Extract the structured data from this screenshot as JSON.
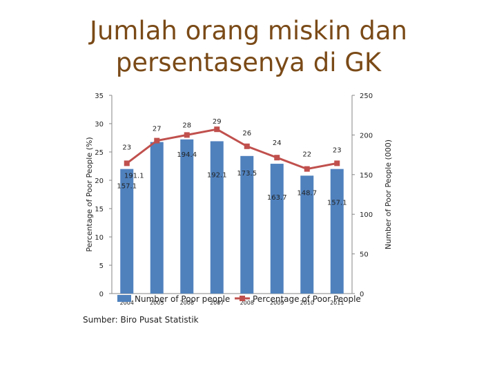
{
  "title": "Jumlah orang miskin dan persentasenya di GK",
  "source": "Sumber: Biro Pusat Statistik",
  "colors": {
    "bar": "#4f81bd",
    "line": "#c0504d",
    "title": "#7a4a17"
  },
  "chart_data": {
    "type": "bar",
    "categories": [
      "2004",
      "2005",
      "2006",
      "2007",
      "2008",
      "2009",
      "2010",
      "2011"
    ],
    "series": [
      {
        "name": "Number of Poor people",
        "type": "bar",
        "axis": "right",
        "values": [
          157.1,
          191.1,
          194.4,
          192.1,
          173.5,
          163.7,
          148.7,
          157.1
        ]
      },
      {
        "name": "Percentage of Poor People",
        "type": "line",
        "axis": "left",
        "values": [
          23,
          27,
          28,
          29,
          26,
          24,
          22,
          23
        ]
      }
    ],
    "y_left": {
      "label": "Percentage of Poor People (%)",
      "range": [
        0,
        35
      ],
      "ticks": [
        "0",
        "5",
        "10",
        "15",
        "20",
        "25",
        "30",
        "35"
      ]
    },
    "y_right": {
      "label": "Number of Poor People (000)",
      "range": [
        0,
        250
      ],
      "ticks": [
        "0",
        "50",
        "100",
        "150",
        "200",
        "250"
      ]
    },
    "legend_position": "bottom",
    "grid": false
  }
}
